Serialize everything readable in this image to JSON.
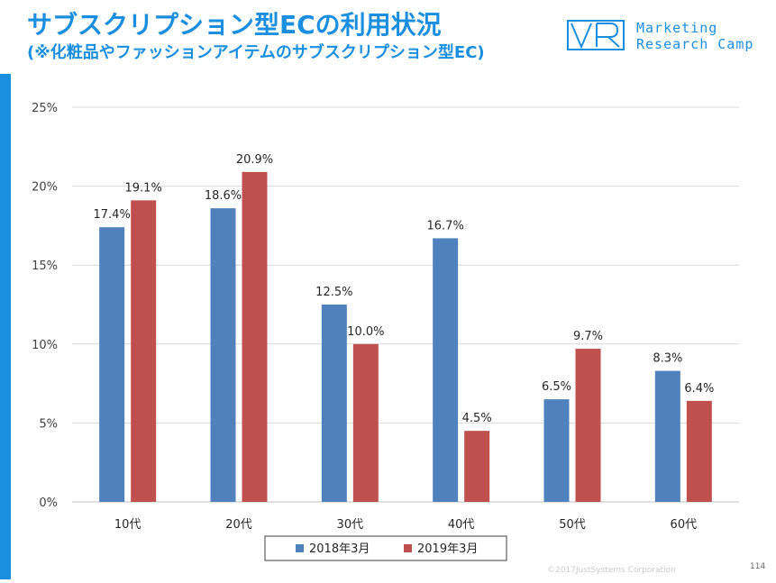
{
  "page": {
    "title": "サブスクリプション型ECの利用状況",
    "subtitle": "(※化粧品やファッションアイテムのサブスクリプション型EC)",
    "logo_line1": "Marketing",
    "logo_line2": "Research Camp",
    "footer": "©2017JustSystems Corporation",
    "page_number": "114",
    "accent_color": "#1a8fe0"
  },
  "chart_data": {
    "type": "bar",
    "title": "",
    "xlabel": "",
    "ylabel": "",
    "categories": [
      "10代",
      "20代",
      "30代",
      "40代",
      "50代",
      "60代"
    ],
    "series": [
      {
        "name": "2018年3月",
        "color": "#4f81bd",
        "values": [
          17.4,
          18.6,
          12.5,
          16.7,
          6.5,
          8.3
        ]
      },
      {
        "name": "2019年3月",
        "color": "#c0504d",
        "values": [
          19.1,
          20.9,
          10.0,
          4.5,
          9.7,
          6.4
        ]
      }
    ],
    "ylim": [
      0,
      25
    ],
    "yticks": [
      0,
      5,
      10,
      15,
      20,
      25
    ],
    "ytick_labels": [
      "0%",
      "5%",
      "10%",
      "15%",
      "20%",
      "25%"
    ],
    "data_labels": [
      [
        "17.4%",
        "18.6%",
        "12.5%",
        "16.7%",
        "6.5%",
        "8.3%"
      ],
      [
        "19.1%",
        "20.9%",
        "10.0%",
        "4.5%",
        "9.7%",
        "6.4%"
      ]
    ],
    "grid": true,
    "legend_position": "bottom-center"
  }
}
